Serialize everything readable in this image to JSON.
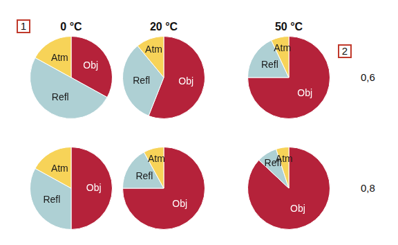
{
  "boxes": [
    "1",
    "2"
  ],
  "columns": [
    "0 °C",
    "20 °C",
    "50 °C"
  ],
  "rows": [
    "0,6",
    "0,8"
  ],
  "chart_data": [
    {
      "type": "pie",
      "categories": [
        "Obj",
        "Refl",
        "Atm"
      ],
      "values": [
        33,
        50,
        17
      ],
      "colors": [
        "#b5223a",
        "#aed0d4",
        "#f7d358"
      ]
    },
    {
      "type": "pie",
      "categories": [
        "Obj",
        "Refl",
        "Atm"
      ],
      "values": [
        56,
        33,
        11
      ],
      "colors": [
        "#b5223a",
        "#aed0d4",
        "#f7d358"
      ]
    },
    {
      "type": "pie",
      "categories": [
        "Obj",
        "Refl",
        "Atm"
      ],
      "values": [
        75,
        18,
        7
      ],
      "colors": [
        "#b5223a",
        "#aed0d4",
        "#f7d358"
      ]
    },
    {
      "type": "pie",
      "categories": [
        "Obj",
        "Refl",
        "Atm"
      ],
      "values": [
        50,
        33,
        17
      ],
      "colors": [
        "#b5223a",
        "#aed0d4",
        "#f7d358"
      ]
    },
    {
      "type": "pie",
      "categories": [
        "Obj",
        "Refl",
        "Atm"
      ],
      "values": [
        75,
        17,
        8
      ],
      "colors": [
        "#b5223a",
        "#aed0d4",
        "#f7d358"
      ]
    },
    {
      "type": "pie",
      "categories": [
        "Obj",
        "Refl",
        "Atm"
      ],
      "values": [
        87,
        8,
        5
      ],
      "colors": [
        "#b5223a",
        "#aed0d4",
        "#f7d358"
      ]
    }
  ]
}
